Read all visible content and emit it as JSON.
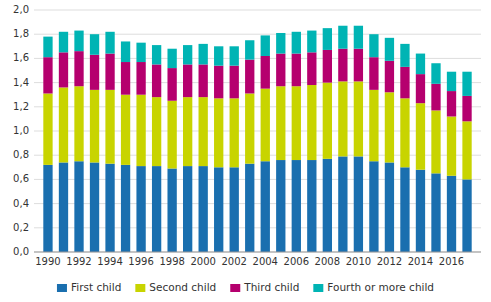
{
  "chart_data": {
    "type": "bar",
    "stacked": true,
    "grid": true,
    "legend": "bottom",
    "x": [
      1990,
      1991,
      1992,
      1993,
      1994,
      1995,
      1996,
      1997,
      1998,
      1999,
      2000,
      2001,
      2002,
      2003,
      2004,
      2005,
      2006,
      2007,
      2008,
      2009,
      2010,
      2011,
      2012,
      2013,
      2014,
      2015,
      2016,
      2017
    ],
    "xlim": [
      1989.1,
      2017.9
    ],
    "xticks": [
      1990,
      1992,
      1994,
      1996,
      1998,
      2000,
      2002,
      2004,
      2006,
      2008,
      2010,
      2012,
      2014,
      2016
    ],
    "ylim": [
      0.0,
      2.0
    ],
    "yticks": [
      {
        "value": 0.0,
        "label": "0,0"
      },
      {
        "value": 0.2,
        "label": "0,2"
      },
      {
        "value": 0.4,
        "label": "0,4"
      },
      {
        "value": 0.6,
        "label": "0,6"
      },
      {
        "value": 0.8,
        "label": "0,8"
      },
      {
        "value": 1.0,
        "label": "1,0"
      },
      {
        "value": 1.2,
        "label": "1,2"
      },
      {
        "value": 1.4,
        "label": "1,4"
      },
      {
        "value": 1.6,
        "label": "1,6"
      },
      {
        "value": 1.8,
        "label": "1,8"
      },
      {
        "value": 2.0,
        "label": "2,0"
      }
    ],
    "series": [
      {
        "name": "First child",
        "color": "#1a6faf",
        "values": [
          0.72,
          0.74,
          0.75,
          0.74,
          0.73,
          0.72,
          0.71,
          0.71,
          0.69,
          0.71,
          0.71,
          0.7,
          0.7,
          0.73,
          0.75,
          0.76,
          0.76,
          0.76,
          0.77,
          0.79,
          0.79,
          0.75,
          0.74,
          0.7,
          0.68,
          0.65,
          0.63,
          0.6
        ]
      },
      {
        "name": "Second child",
        "color": "#c8d400",
        "values": [
          0.59,
          0.62,
          0.62,
          0.6,
          0.61,
          0.58,
          0.59,
          0.57,
          0.56,
          0.57,
          0.57,
          0.57,
          0.57,
          0.58,
          0.6,
          0.61,
          0.61,
          0.62,
          0.63,
          0.62,
          0.62,
          0.59,
          0.58,
          0.57,
          0.55,
          0.52,
          0.49,
          0.48
        ]
      },
      {
        "name": "Third child",
        "color": "#b5006e",
        "values": [
          0.3,
          0.29,
          0.29,
          0.29,
          0.3,
          0.27,
          0.27,
          0.27,
          0.27,
          0.27,
          0.27,
          0.27,
          0.27,
          0.28,
          0.27,
          0.27,
          0.27,
          0.27,
          0.27,
          0.27,
          0.27,
          0.27,
          0.26,
          0.26,
          0.24,
          0.22,
          0.21,
          0.21
        ]
      },
      {
        "name": "Fourth or more child",
        "color": "#00b4b4",
        "values": [
          0.17,
          0.17,
          0.17,
          0.17,
          0.18,
          0.17,
          0.16,
          0.16,
          0.16,
          0.16,
          0.17,
          0.16,
          0.16,
          0.16,
          0.17,
          0.17,
          0.18,
          0.18,
          0.18,
          0.19,
          0.19,
          0.19,
          0.19,
          0.19,
          0.17,
          0.17,
          0.16,
          0.2
        ]
      }
    ]
  }
}
